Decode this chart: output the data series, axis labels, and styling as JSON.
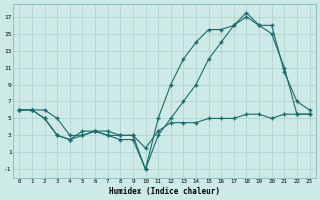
{
  "xlabel": "Humidex (Indice chaleur)",
  "ylabel": "",
  "bg_color": "#ceeae6",
  "grid_color": "#afd4d0",
  "line_color": "#1a6b6b",
  "line1_x": [
    0,
    1,
    2,
    3,
    4,
    5,
    6,
    7,
    8,
    9,
    10,
    11,
    12,
    13,
    14,
    15,
    16,
    17,
    18,
    19,
    20,
    21,
    22,
    23
  ],
  "line1_y": [
    6,
    6,
    6,
    5,
    3,
    3,
    3.5,
    3,
    3,
    3,
    -1,
    5,
    9,
    12,
    14,
    15.5,
    15.5,
    16,
    17.5,
    16,
    16,
    10.5,
    7,
    6
  ],
  "line2_x": [
    0,
    1,
    2,
    3,
    4,
    5,
    6,
    7,
    8,
    9,
    10,
    11,
    12,
    13,
    14,
    15,
    16,
    17,
    18,
    19,
    20,
    21,
    22,
    23
  ],
  "line2_y": [
    6,
    6,
    5,
    3,
    2.5,
    3,
    3.5,
    3,
    2.5,
    2.5,
    -1,
    3,
    5,
    7,
    9,
    12,
    14,
    16,
    17,
    16,
    15,
    11,
    5.5,
    5.5
  ],
  "line3_x": [
    0,
    1,
    2,
    3,
    4,
    5,
    6,
    7,
    8,
    9,
    10,
    11,
    12,
    13,
    14,
    15,
    16,
    17,
    18,
    19,
    20,
    21,
    22,
    23
  ],
  "line3_y": [
    6,
    6,
    5,
    3,
    2.5,
    3.5,
    3.5,
    3.5,
    3,
    3,
    1.5,
    3.5,
    4.5,
    4.5,
    4.5,
    5,
    5,
    5,
    5.5,
    5.5,
    5,
    5.5,
    5.5,
    5.5
  ],
  "xlim": [
    -0.5,
    23.5
  ],
  "ylim": [
    -2,
    18.5
  ],
  "xticks": [
    0,
    1,
    2,
    3,
    4,
    5,
    6,
    7,
    8,
    9,
    10,
    11,
    12,
    13,
    14,
    15,
    16,
    17,
    18,
    19,
    20,
    21,
    22,
    23
  ],
  "yticks": [
    -1,
    1,
    3,
    5,
    7,
    9,
    11,
    13,
    15,
    17
  ]
}
